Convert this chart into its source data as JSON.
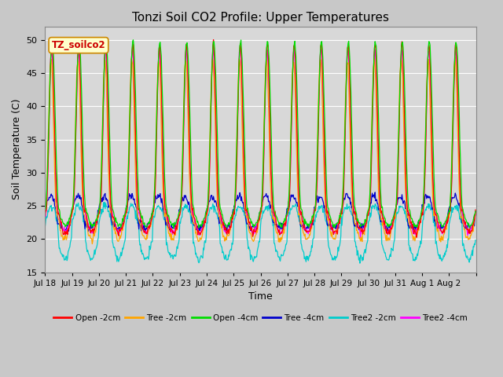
{
  "title": "Tonzi Soil CO2 Profile: Upper Temperatures",
  "xlabel": "Time",
  "ylabel": "Soil Temperature (C)",
  "ylim": [
    15,
    52
  ],
  "yticks": [
    15,
    20,
    25,
    30,
    35,
    40,
    45,
    50
  ],
  "fig_bg": "#c8c8c8",
  "ax_bg": "#d8d8d8",
  "series": [
    {
      "label": "Open -2cm",
      "color": "#ff0000"
    },
    {
      "label": "Tree -2cm",
      "color": "#ffa500"
    },
    {
      "label": "Open -4cm",
      "color": "#00dd00"
    },
    {
      "label": "Tree -4cm",
      "color": "#0000cc"
    },
    {
      "label": "Tree2 -2cm",
      "color": "#00cccc"
    },
    {
      "label": "Tree2 -4cm",
      "color": "#ff00ff"
    }
  ],
  "watermark": "TZ_soilco2",
  "tick_labels": [
    "Jul 18",
    "Jul 19",
    "Jul 20",
    "Jul 21",
    "Jul 22",
    "Jul 23",
    "Jul 24",
    "Jul 25",
    "Jul 26",
    "Jul 27",
    "Jul 28",
    "Jul 29",
    "Jul 30",
    "Jul 31",
    "Aug 1",
    "Aug 2"
  ]
}
